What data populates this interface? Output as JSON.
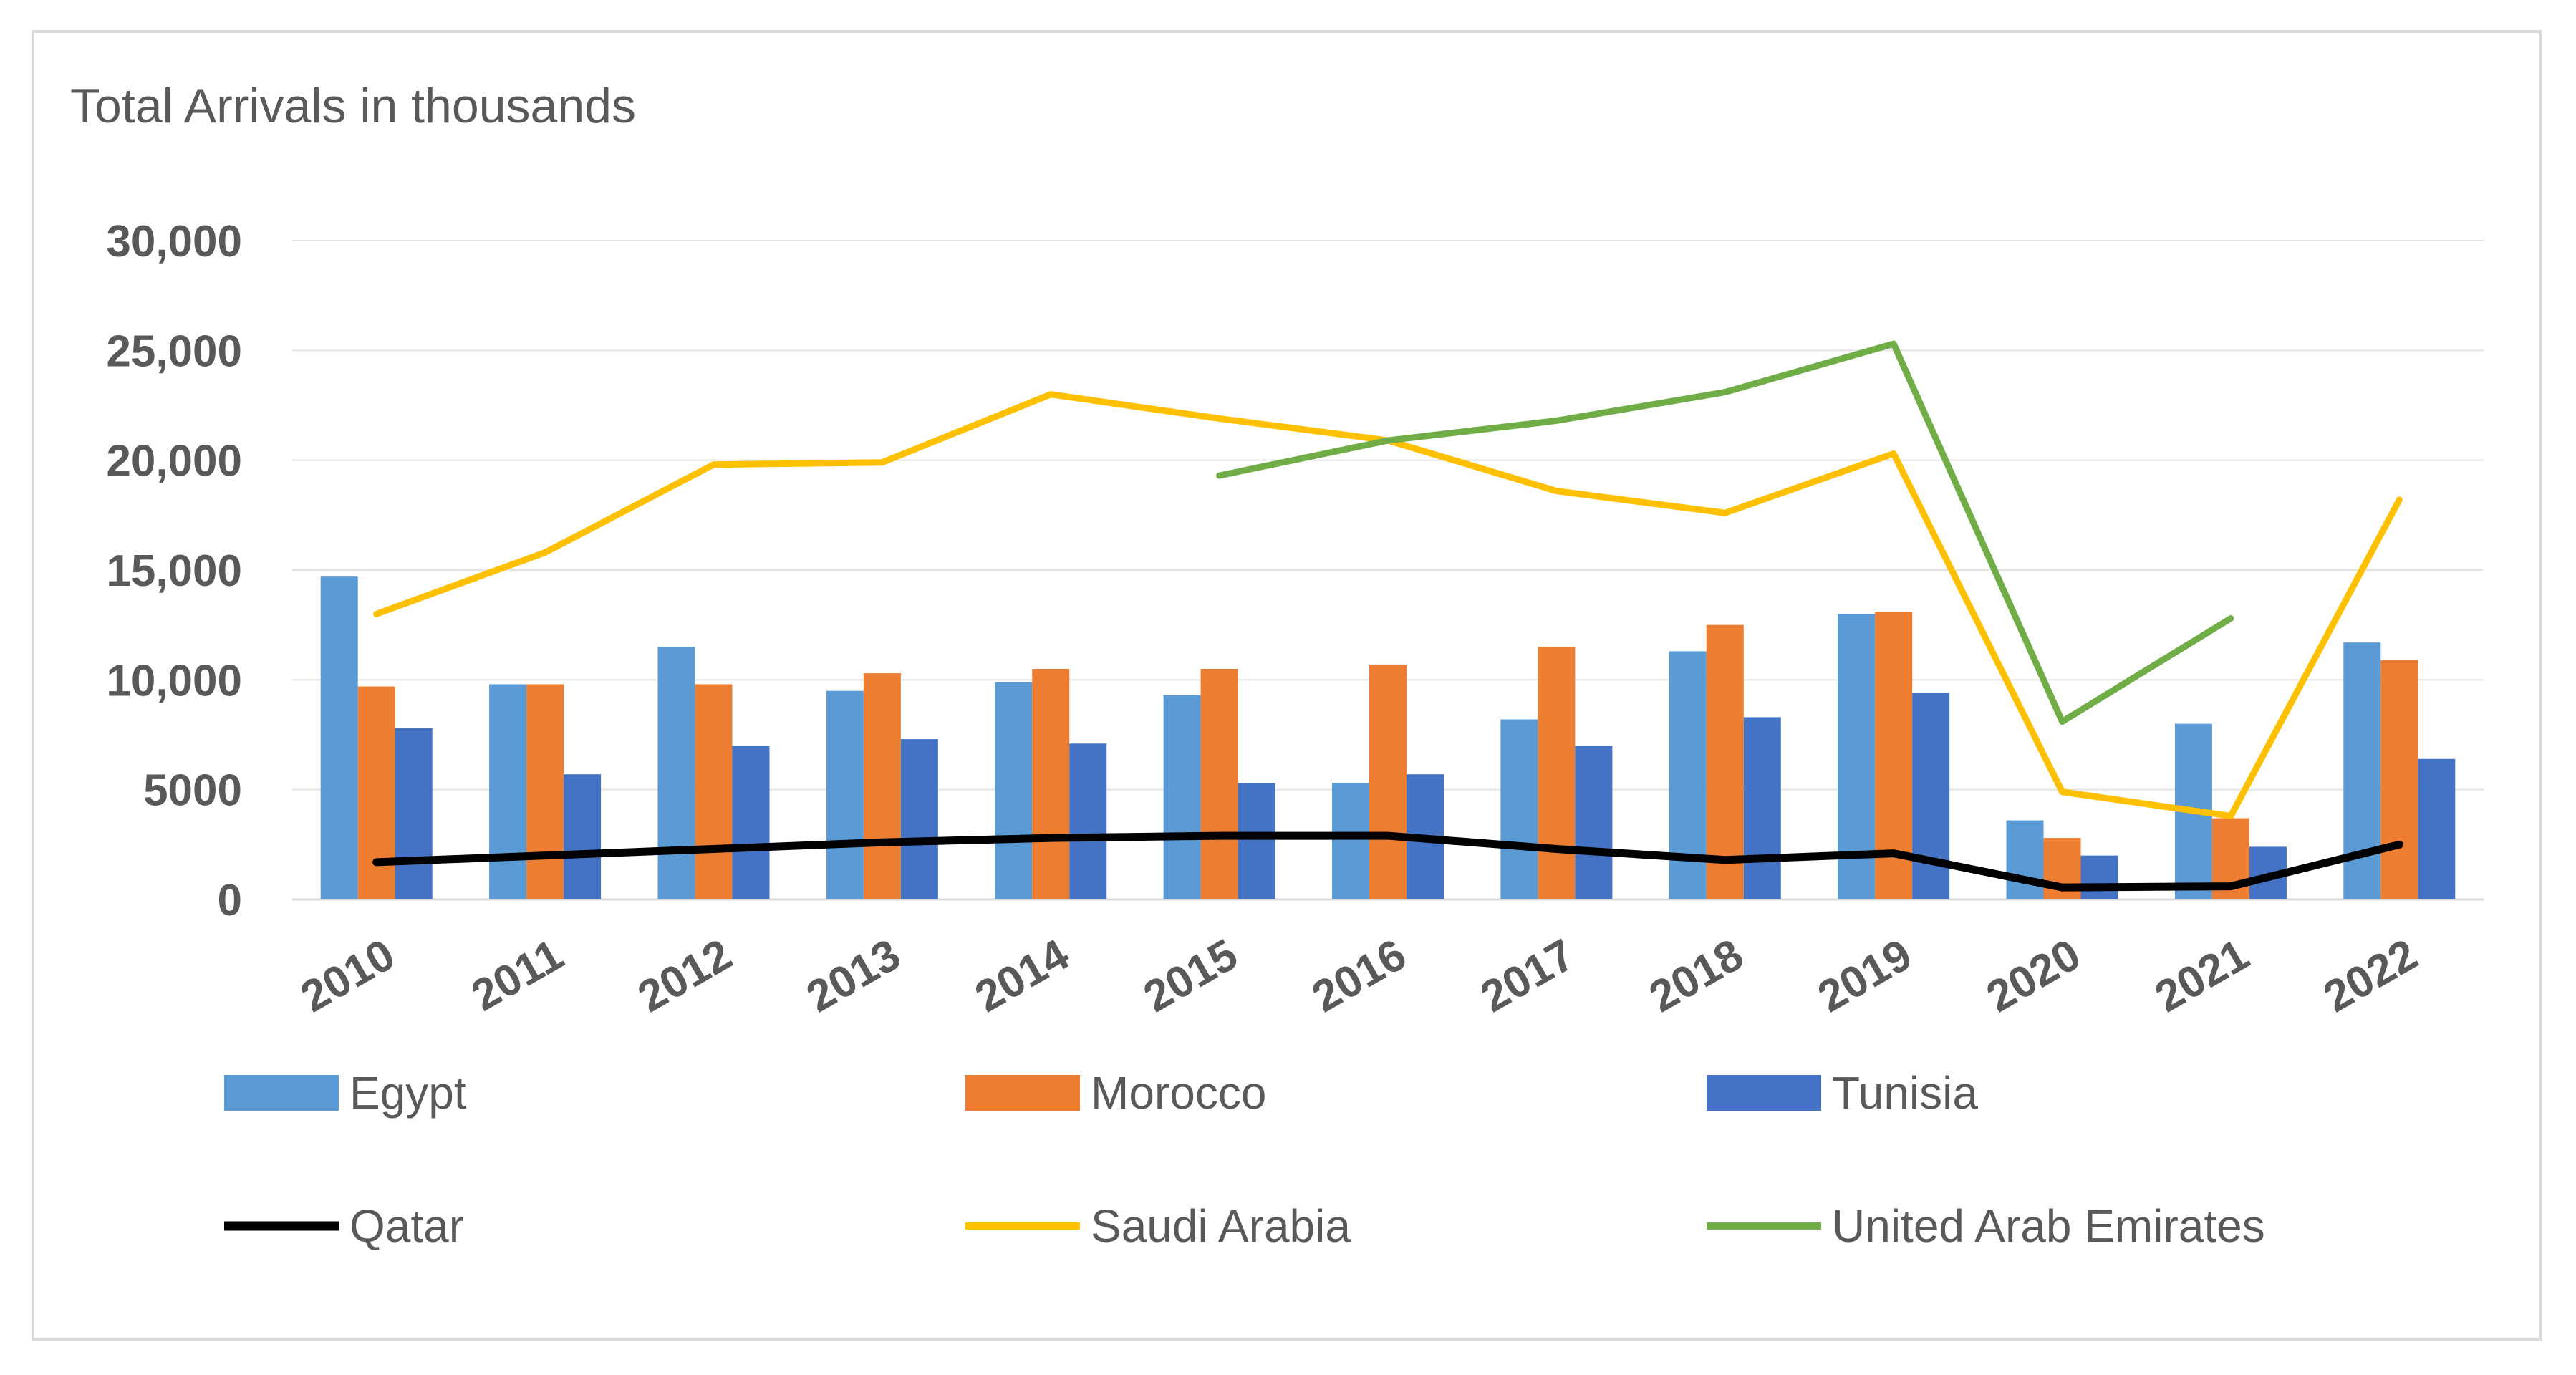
{
  "chart_data": {
    "type": "bar",
    "title": "Total Arrivals in thousands",
    "xlabel": "",
    "ylabel": "",
    "ylim": [
      0,
      30000
    ],
    "y_ticks": [
      {
        "value": 0,
        "label": "0"
      },
      {
        "value": 5000,
        "label": "5000"
      },
      {
        "value": 10000,
        "label": "10,000"
      },
      {
        "value": 15000,
        "label": "15,000"
      },
      {
        "value": 20000,
        "label": "20,000"
      },
      {
        "value": 25000,
        "label": "25,000"
      },
      {
        "value": 30000,
        "label": "30,000"
      }
    ],
    "grid": true,
    "legend_position": "bottom",
    "categories": [
      "2010",
      "2011",
      "2012",
      "2013",
      "2014",
      "2015",
      "2016",
      "2017",
      "2018",
      "2019",
      "2020",
      "2021",
      "2022"
    ],
    "bar_series": [
      {
        "name": "Egypt",
        "color": "#5b9bd5",
        "values": [
          14700,
          9800,
          11500,
          9500,
          9900,
          9300,
          5300,
          8200,
          11300,
          13000,
          3600,
          8000,
          11700
        ]
      },
      {
        "name": "Morocco",
        "color": "#ed7d31",
        "values": [
          9700,
          9800,
          9800,
          10300,
          10500,
          10500,
          10700,
          11500,
          12500,
          13100,
          2800,
          3700,
          10900
        ]
      },
      {
        "name": "Tunisia",
        "color": "#4472c4",
        "values": [
          7800,
          5700,
          7000,
          7300,
          7100,
          5300,
          5700,
          7000,
          8300,
          9400,
          2000,
          2400,
          6400
        ]
      }
    ],
    "line_series": [
      {
        "name": "Qatar",
        "color": "#000000",
        "values": [
          1700,
          2000,
          2300,
          2600,
          2800,
          2900,
          2900,
          2300,
          1800,
          2100,
          550,
          600,
          2500
        ]
      },
      {
        "name": "Saudi Arabia",
        "color": "#ffc000",
        "values": [
          13000,
          15800,
          19800,
          19900,
          23000,
          21900,
          20900,
          18600,
          17600,
          20300,
          4900,
          3800,
          18200
        ]
      },
      {
        "name": "United Arab Emirates",
        "color": "#70ad47",
        "values": [
          null,
          null,
          null,
          null,
          null,
          19300,
          20900,
          21800,
          23100,
          25300,
          8100,
          12800,
          null
        ]
      }
    ]
  }
}
